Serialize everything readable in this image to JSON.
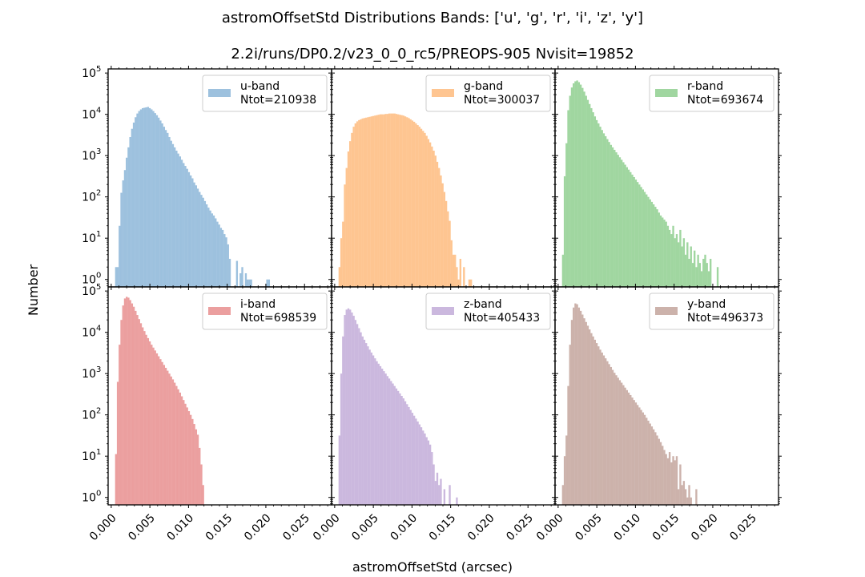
{
  "figure": {
    "title_line1": "astromOffsetStd Distributions  Bands: ['u', 'g', 'r', 'i', 'z', 'y']",
    "title_line2": "2.2i/runs/DP0.2/v23_0_0_rc5/PREOPS-905   Nvisit=19852",
    "xlabel": "astromOffsetStd (arcsec)",
    "ylabel": "Number"
  },
  "chart_data": [
    {
      "type": "bar",
      "panel": "u",
      "legend_title": "u-band",
      "legend_ntot": "Ntot=210938",
      "color": "#9dc1de",
      "xlim": [
        -0.0004,
        0.0285
      ],
      "ylim_log10": [
        -0.18,
        5.1
      ],
      "bins": {
        "start": 0.0005,
        "width": 0.00023
      },
      "counts_log10": [
        0.3,
        0.3,
        1.3,
        2.1,
        2.4,
        2.65,
        2.95,
        3.2,
        3.45,
        3.65,
        3.8,
        3.93,
        4.02,
        4.08,
        4.12,
        4.15,
        4.16,
        4.17,
        4.18,
        4.15,
        4.12,
        4.08,
        4.03,
        3.98,
        3.92,
        3.85,
        3.78,
        3.7,
        3.62,
        3.55,
        3.45,
        3.36,
        3.28,
        3.2,
        3.12,
        3.05,
        2.98,
        2.9,
        2.82,
        2.75,
        2.68,
        2.6,
        2.52,
        2.45,
        2.35,
        2.28,
        2.2,
        2.12,
        2.05,
        1.98,
        1.9,
        1.82,
        1.74,
        1.67,
        1.6,
        1.55,
        1.48,
        1.4,
        1.33,
        1.25,
        1.2,
        1.1,
        1.02,
        0.85,
        0.5,
        null,
        null,
        null,
        0.45,
        null,
        0.15,
        0.3,
        null,
        0.15,
        0,
        0,
        0,
        null,
        null,
        null,
        null,
        null,
        null,
        null,
        null,
        0,
        0
      ]
    },
    {
      "type": "bar",
      "panel": "g",
      "legend_title": "g-band",
      "legend_ntot": "Ntot=300037",
      "color": "#fec591",
      "xlim": [
        -0.0004,
        0.0285
      ],
      "ylim_log10": [
        -0.18,
        5.1
      ],
      "bins": {
        "start": 0.0005,
        "width": 0.00023
      },
      "counts_log10": [
        0.3,
        1.0,
        1.4,
        2.3,
        2.7,
        3.1,
        3.35,
        3.55,
        3.7,
        3.78,
        3.83,
        3.86,
        3.88,
        3.9,
        3.91,
        3.92,
        3.93,
        3.94,
        3.95,
        3.96,
        3.97,
        3.98,
        3.99,
        4.0,
        4.0,
        4.0,
        4.01,
        4.01,
        4.02,
        4.02,
        4.02,
        4.02,
        4.01,
        4.0,
        3.99,
        3.98,
        3.97,
        3.95,
        3.93,
        3.91,
        3.88,
        3.85,
        3.82,
        3.78,
        3.74,
        3.7,
        3.65,
        3.6,
        3.55,
        3.48,
        3.4,
        3.32,
        3.22,
        3.12,
        3.0,
        2.85,
        2.7,
        2.52,
        2.33,
        2.12,
        1.9,
        1.65,
        1.42,
        0.95,
        0.6,
        0.6,
        0.3,
        0,
        0.5,
        null,
        0.3,
        null,
        null,
        0,
        0,
        null,
        null,
        null,
        null,
        null,
        null,
        null,
        null,
        null,
        null,
        null,
        null
      ]
    },
    {
      "type": "bar",
      "panel": "r",
      "legend_title": "r-band",
      "legend_ntot": "Ntot=693674",
      "color": "#a0d6a0",
      "xlim": [
        -0.0004,
        0.0285
      ],
      "ylim_log10": [
        -0.18,
        5.1
      ],
      "bins": {
        "start": 0.0005,
        "width": 0.00023
      },
      "counts_log10": [
        0.6,
        2.5,
        3.3,
        4.1,
        4.45,
        4.65,
        4.75,
        4.8,
        4.82,
        4.78,
        4.72,
        4.64,
        4.55,
        4.45,
        4.35,
        4.25,
        4.15,
        4.05,
        3.95,
        3.86,
        3.78,
        3.7,
        3.62,
        3.54,
        3.47,
        3.4,
        3.33,
        3.26,
        3.2,
        3.14,
        3.08,
        3.02,
        2.96,
        2.9,
        2.84,
        2.78,
        2.72,
        2.66,
        2.6,
        2.54,
        2.48,
        2.42,
        2.36,
        2.3,
        2.24,
        2.18,
        2.12,
        2.06,
        2.0,
        1.94,
        1.88,
        1.82,
        1.76,
        1.7,
        1.62,
        1.55,
        1.5,
        1.45,
        1.4,
        1.3,
        1.2,
        1.1,
        1.3,
        1.0,
        1.1,
        0.9,
        1.2,
        0.8,
        1.0,
        0.6,
        0.9,
        0.5,
        0.8,
        0.4,
        0.7,
        0.3,
        0.6,
        0.4,
        0.2,
        0.5,
        0.6,
        0.4,
        0.2,
        0.5,
        null,
        null,
        null,
        0.3
      ]
    },
    {
      "type": "bar",
      "panel": "i",
      "legend_title": "i-band",
      "legend_ntot": "Ntot=698539",
      "color": "#eb9f9f",
      "xlim": [
        -0.0004,
        0.0285
      ],
      "ylim_log10": [
        -0.18,
        5.1
      ],
      "bins": {
        "start": 0.0005,
        "width": 0.00023
      },
      "counts_log10": [
        1.05,
        2.8,
        3.7,
        4.3,
        4.65,
        4.82,
        4.86,
        4.84,
        4.78,
        4.7,
        4.62,
        4.52,
        4.42,
        4.32,
        4.22,
        4.12,
        4.03,
        3.94,
        3.86,
        3.78,
        3.7,
        3.63,
        3.56,
        3.49,
        3.42,
        3.35,
        3.28,
        3.21,
        3.14,
        3.07,
        3.0,
        2.93,
        2.86,
        2.78,
        2.7,
        2.62,
        2.54,
        2.45,
        2.36,
        2.27,
        2.18,
        2.09,
        2.0,
        1.9,
        1.78,
        1.65,
        1.52,
        1.2,
        0.8,
        0.3
      ]
    },
    {
      "type": "bar",
      "panel": "z",
      "legend_title": "z-band",
      "legend_ntot": "Ntot=405433",
      "color": "#cbb8de",
      "xlim": [
        -0.0004,
        0.0285
      ],
      "ylim_log10": [
        -0.18,
        5.1
      ],
      "bins": {
        "start": 0.0005,
        "width": 0.00023
      },
      "counts_log10": [
        1.5,
        3.0,
        3.9,
        4.42,
        4.55,
        4.58,
        4.55,
        4.48,
        4.4,
        4.3,
        4.2,
        4.1,
        4.0,
        3.9,
        3.82,
        3.74,
        3.66,
        3.58,
        3.51,
        3.44,
        3.37,
        3.3,
        3.24,
        3.18,
        3.12,
        3.06,
        3.0,
        2.94,
        2.88,
        2.82,
        2.76,
        2.7,
        2.64,
        2.58,
        2.52,
        2.46,
        2.4,
        2.33,
        2.26,
        2.19,
        2.12,
        2.05,
        1.98,
        1.91,
        1.84,
        1.77,
        1.7,
        1.62,
        1.55,
        1.46,
        1.38,
        1.28,
        1.1,
        0.8,
        0.4,
        0.6,
        0.3,
        0.45,
        null,
        0.2,
        null,
        null,
        0.3,
        null,
        null,
        null,
        0
      ]
    },
    {
      "type": "bar",
      "panel": "y",
      "legend_title": "y-band",
      "legend_ntot": "Ntot=496373",
      "color": "#ccb2ab",
      "xlim": [
        -0.0004,
        0.0285
      ],
      "ylim_log10": [
        -0.18,
        5.1
      ],
      "bins": {
        "start": 0.0005,
        "width": 0.00023
      },
      "counts_log10": [
        0.3,
        1.0,
        1.5,
        2.7,
        3.7,
        4.3,
        4.6,
        4.7,
        4.68,
        4.6,
        4.52,
        4.43,
        4.34,
        4.25,
        4.16,
        4.07,
        3.98,
        3.9,
        3.82,
        3.74,
        3.66,
        3.58,
        3.51,
        3.44,
        3.37,
        3.3,
        3.23,
        3.16,
        3.09,
        3.02,
        2.96,
        2.9,
        2.84,
        2.78,
        2.72,
        2.66,
        2.6,
        2.54,
        2.48,
        2.42,
        2.36,
        2.3,
        2.24,
        2.18,
        2.12,
        2.06,
        2.0,
        1.93,
        1.86,
        1.79,
        1.72,
        1.65,
        1.58,
        1.5,
        1.42,
        1.34,
        1.25,
        1.15,
        1.05,
        0.95,
        1.1,
        0.85,
        1.0,
        0.9,
        1.0,
        0.2,
        0.8,
        0.3,
        0.4,
        0.2,
        0,
        0.3,
        0,
        null,
        null,
        0.2
      ]
    }
  ],
  "axes": {
    "x_ticks": [
      0.0,
      0.005,
      0.01,
      0.015,
      0.02,
      0.025
    ],
    "x_tick_labels": [
      "0.000",
      "0.005",
      "0.010",
      "0.015",
      "0.020",
      "0.025"
    ],
    "y_ticks_log10": [
      0,
      1,
      2,
      3,
      4,
      5
    ],
    "y_tick_labels": [
      "10",
      "10",
      "10",
      "10",
      "10",
      "10"
    ],
    "y_tick_exponents": [
      "0",
      "1",
      "2",
      "3",
      "4",
      "5"
    ]
  }
}
